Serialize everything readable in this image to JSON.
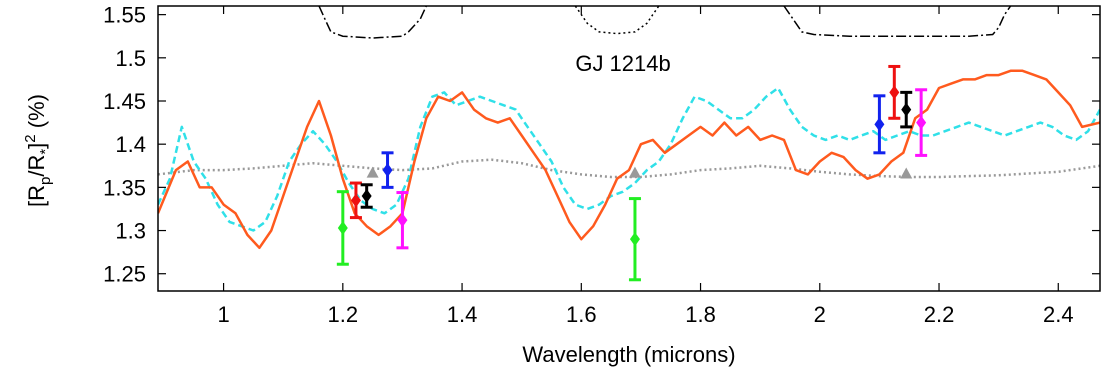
{
  "chart_data": {
    "type": "line",
    "annotation": "GJ 1214b",
    "xlabel": "Wavelength (microns)",
    "ylabel": {
      "base": "[R",
      "sub1": "p",
      "mid": "/R",
      "sub2": "*",
      "close": "]",
      "sup": "2",
      "unit": " (%)"
    },
    "xlim": [
      0.89,
      2.47
    ],
    "ylim": [
      1.23,
      1.56
    ],
    "xticks": [
      1,
      1.2,
      1.4,
      1.6,
      1.8,
      2,
      2.2,
      2.4
    ],
    "xtick_labels": [
      "1",
      "1.2",
      "1.4",
      "1.6",
      "1.8",
      "2",
      "2.2",
      "2.4"
    ],
    "yticks": [
      1.25,
      1.3,
      1.35,
      1.4,
      1.45,
      1.5,
      1.55
    ],
    "ytick_labels": [
      "1.25",
      "1.3",
      "1.35",
      "1.4",
      "1.45",
      "1.5",
      "1.55"
    ],
    "grid": false,
    "series": [
      {
        "style": "solid",
        "color": "#ff5a1e",
        "x": [
          0.89,
          0.92,
          0.94,
          0.96,
          0.98,
          1.0,
          1.02,
          1.04,
          1.06,
          1.08,
          1.1,
          1.12,
          1.14,
          1.16,
          1.18,
          1.2,
          1.22,
          1.24,
          1.26,
          1.28,
          1.3,
          1.32,
          1.34,
          1.36,
          1.38,
          1.4,
          1.42,
          1.44,
          1.46,
          1.48,
          1.5,
          1.52,
          1.54,
          1.56,
          1.58,
          1.6,
          1.62,
          1.64,
          1.66,
          1.68,
          1.7,
          1.72,
          1.74,
          1.76,
          1.78,
          1.8,
          1.82,
          1.84,
          1.86,
          1.88,
          1.9,
          1.92,
          1.94,
          1.96,
          1.98,
          2.0,
          2.02,
          2.04,
          2.06,
          2.08,
          2.1,
          2.12,
          2.14,
          2.16,
          2.18,
          2.2,
          2.22,
          2.24,
          2.26,
          2.28,
          2.3,
          2.32,
          2.34,
          2.36,
          2.38,
          2.4,
          2.42,
          2.44,
          2.47
        ],
        "y": [
          1.32,
          1.37,
          1.38,
          1.35,
          1.35,
          1.33,
          1.32,
          1.295,
          1.28,
          1.3,
          1.34,
          1.38,
          1.42,
          1.45,
          1.41,
          1.36,
          1.32,
          1.305,
          1.295,
          1.305,
          1.32,
          1.38,
          1.43,
          1.455,
          1.45,
          1.46,
          1.44,
          1.43,
          1.425,
          1.43,
          1.41,
          1.39,
          1.37,
          1.34,
          1.31,
          1.29,
          1.305,
          1.33,
          1.36,
          1.37,
          1.4,
          1.405,
          1.39,
          1.4,
          1.41,
          1.42,
          1.41,
          1.425,
          1.41,
          1.42,
          1.405,
          1.41,
          1.405,
          1.37,
          1.365,
          1.38,
          1.39,
          1.385,
          1.37,
          1.36,
          1.365,
          1.38,
          1.39,
          1.43,
          1.44,
          1.465,
          1.47,
          1.475,
          1.475,
          1.48,
          1.48,
          1.485,
          1.485,
          1.48,
          1.475,
          1.46,
          1.445,
          1.42,
          1.425
        ]
      },
      {
        "style": "dashed",
        "color": "#30e0e8",
        "x": [
          0.89,
          0.91,
          0.93,
          0.95,
          0.97,
          0.99,
          1.01,
          1.03,
          1.05,
          1.07,
          1.09,
          1.11,
          1.13,
          1.15,
          1.17,
          1.19,
          1.21,
          1.23,
          1.25,
          1.27,
          1.29,
          1.31,
          1.33,
          1.35,
          1.37,
          1.39,
          1.41,
          1.43,
          1.45,
          1.47,
          1.49,
          1.51,
          1.53,
          1.55,
          1.57,
          1.59,
          1.61,
          1.63,
          1.65,
          1.67,
          1.69,
          1.71,
          1.73,
          1.75,
          1.77,
          1.79,
          1.81,
          1.83,
          1.85,
          1.87,
          1.89,
          1.91,
          1.93,
          1.95,
          1.97,
          1.99,
          2.01,
          2.03,
          2.05,
          2.07,
          2.09,
          2.11,
          2.13,
          2.15,
          2.17,
          2.19,
          2.21,
          2.23,
          2.25,
          2.27,
          2.29,
          2.31,
          2.33,
          2.35,
          2.37,
          2.39,
          2.41,
          2.43,
          2.45,
          2.47
        ],
        "y": [
          1.33,
          1.36,
          1.42,
          1.38,
          1.36,
          1.33,
          1.31,
          1.305,
          1.3,
          1.31,
          1.34,
          1.38,
          1.4,
          1.415,
          1.4,
          1.38,
          1.355,
          1.335,
          1.325,
          1.32,
          1.33,
          1.36,
          1.42,
          1.455,
          1.46,
          1.445,
          1.45,
          1.455,
          1.45,
          1.445,
          1.44,
          1.42,
          1.4,
          1.38,
          1.35,
          1.33,
          1.325,
          1.33,
          1.34,
          1.345,
          1.355,
          1.37,
          1.38,
          1.4,
          1.43,
          1.455,
          1.45,
          1.44,
          1.43,
          1.43,
          1.44,
          1.455,
          1.465,
          1.44,
          1.42,
          1.41,
          1.405,
          1.41,
          1.405,
          1.41,
          1.415,
          1.405,
          1.41,
          1.415,
          1.41,
          1.41,
          1.415,
          1.42,
          1.425,
          1.42,
          1.415,
          1.41,
          1.415,
          1.42,
          1.425,
          1.42,
          1.41,
          1.405,
          1.415,
          1.44
        ]
      },
      {
        "style": "dotted",
        "color": "#999999",
        "x": [
          0.89,
          0.95,
          1.0,
          1.05,
          1.1,
          1.15,
          1.2,
          1.25,
          1.3,
          1.35,
          1.4,
          1.45,
          1.5,
          1.55,
          1.6,
          1.65,
          1.7,
          1.75,
          1.8,
          1.85,
          1.9,
          1.95,
          2.0,
          2.05,
          2.1,
          2.15,
          2.2,
          2.25,
          2.3,
          2.35,
          2.4,
          2.47
        ],
        "y": [
          1.365,
          1.37,
          1.37,
          1.372,
          1.375,
          1.378,
          1.375,
          1.372,
          1.37,
          1.372,
          1.38,
          1.382,
          1.378,
          1.37,
          1.365,
          1.362,
          1.362,
          1.365,
          1.37,
          1.372,
          1.375,
          1.372,
          1.368,
          1.365,
          1.363,
          1.362,
          1.362,
          1.363,
          1.364,
          1.366,
          1.368,
          1.375
        ]
      }
    ],
    "filters": [
      {
        "style": "dashdot",
        "color": "#000000",
        "x": [
          1.16,
          1.17,
          1.18,
          1.2,
          1.25,
          1.3,
          1.31,
          1.33,
          1.34
        ],
        "y": [
          1.56,
          1.545,
          1.53,
          1.525,
          1.523,
          1.525,
          1.53,
          1.545,
          1.56
        ]
      },
      {
        "style": "dotted",
        "color": "#000000",
        "x": [
          1.59,
          1.6,
          1.61,
          1.63,
          1.66,
          1.69,
          1.71,
          1.72,
          1.73
        ],
        "y": [
          1.56,
          1.55,
          1.54,
          1.53,
          1.528,
          1.53,
          1.54,
          1.55,
          1.56
        ]
      },
      {
        "style": "dashdot",
        "color": "#000000",
        "x": [
          1.94,
          1.955,
          1.97,
          1.99,
          2.05,
          2.15,
          2.25,
          2.29,
          2.3,
          2.31,
          2.32
        ],
        "y": [
          1.56,
          1.545,
          1.53,
          1.527,
          1.525,
          1.525,
          1.525,
          1.527,
          1.535,
          1.55,
          1.56
        ]
      }
    ],
    "error_points": [
      {
        "x": 1.2,
        "y": 1.303,
        "err": 0.042,
        "color": "#22ee22",
        "marker": "diamond"
      },
      {
        "x": 1.222,
        "y": 1.335,
        "err": 0.02,
        "color": "#ee1111",
        "marker": "diamond"
      },
      {
        "x": 1.24,
        "y": 1.34,
        "err": 0.013,
        "color": "#000000",
        "marker": "diamond"
      },
      {
        "x": 1.275,
        "y": 1.37,
        "err": 0.02,
        "color": "#1122ee",
        "marker": "diamond"
      },
      {
        "x": 1.3,
        "y": 1.312,
        "err": 0.032,
        "color": "#ff11ff",
        "marker": "diamond"
      },
      {
        "x": 1.69,
        "y": 1.29,
        "err": 0.047,
        "color": "#22ee22",
        "marker": "diamond"
      },
      {
        "x": 2.1,
        "y": 1.423,
        "err": 0.033,
        "color": "#1122ee",
        "marker": "diamond"
      },
      {
        "x": 2.125,
        "y": 1.46,
        "err": 0.03,
        "color": "#ee1111",
        "marker": "diamond"
      },
      {
        "x": 2.145,
        "y": 1.44,
        "err": 0.02,
        "color": "#000000",
        "marker": "diamond"
      },
      {
        "x": 2.17,
        "y": 1.425,
        "err": 0.038,
        "color": "#ff11ff",
        "marker": "diamond"
      }
    ],
    "triangle_points": [
      {
        "x": 1.25,
        "y": 1.367,
        "color": "#999999"
      },
      {
        "x": 1.69,
        "y": 1.367,
        "color": "#999999"
      },
      {
        "x": 2.145,
        "y": 1.366,
        "color": "#999999"
      }
    ]
  }
}
